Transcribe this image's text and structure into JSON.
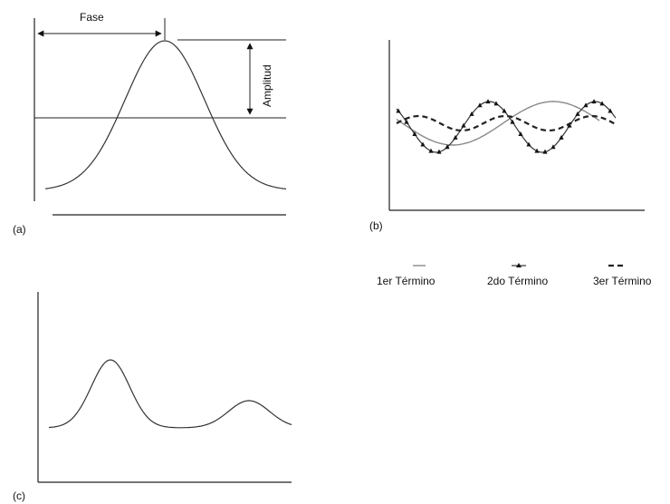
{
  "panel_a": {
    "label": "(a)",
    "phase_label": "Fase",
    "amplitude_label": "Amplitud"
  },
  "panel_b": {
    "label": "(b)",
    "legend": [
      {
        "label": "1er  Término",
        "style": "solid-grey"
      },
      {
        "label": "2do Término",
        "style": "solid-with-markers"
      },
      {
        "label": "3er Término",
        "style": "dashed"
      }
    ]
  },
  "panel_c": {
    "label": "(c)"
  },
  "colors": {
    "line": "#333333",
    "term1": "#8a8a8a",
    "term2": "#111111",
    "term3": "#222222"
  }
}
